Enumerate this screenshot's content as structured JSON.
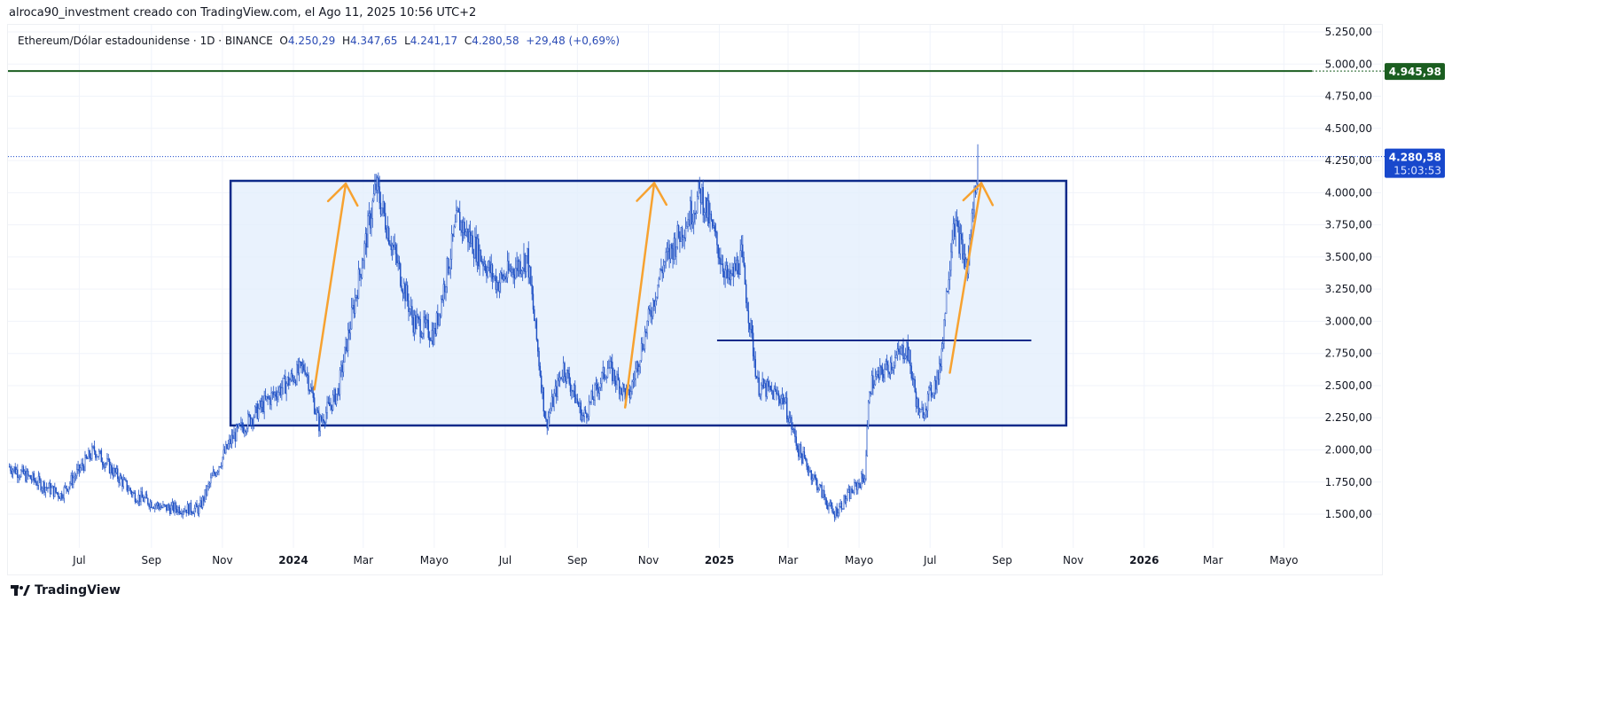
{
  "credit": "alroca90_investment creado con TradingView.com, el Ago 11, 2025 10:56 UTC+2",
  "legend": {
    "symbol": "Ethereum/Dólar estadounidense · 1D · BINANCE",
    "o_label": "O",
    "o": "4.250,29",
    "h_label": "H",
    "h": "4.347,65",
    "l_label": "L",
    "l": "4.241,17",
    "c_label": "C",
    "c": "4.280,58",
    "change": "+29,48 (+0,69%)"
  },
  "logo": "TradingView",
  "colors": {
    "candle": "#1d4fc4",
    "box_border": "#0d2a8a",
    "box_fill": "#e3effd",
    "arrow": "#f7a230",
    "resistance": "#1b5e20",
    "price_tag": "#1848cc"
  },
  "chart_data": {
    "type": "candlestick",
    "ylim": [
      1300,
      5350
    ],
    "y_ticks": [
      "5.250,00",
      "5.000,00",
      "4.750,00",
      "4.500,00",
      "4.250,00",
      "4.000,00",
      "3.750,00",
      "3.500,00",
      "3.250,00",
      "3.000,00",
      "2.750,00",
      "2.500,00",
      "2.250,00",
      "2.000,00",
      "1.750,00",
      "1.500,00"
    ],
    "y_tick_values": [
      5250,
      5000,
      4750,
      4500,
      4250,
      4000,
      3750,
      3500,
      3250,
      3000,
      2750,
      2500,
      2250,
      2000,
      1750,
      1500
    ],
    "x_ticks": [
      {
        "label": "Jul",
        "date": "2023-07-01"
      },
      {
        "label": "Sep",
        "date": "2023-09-01"
      },
      {
        "label": "Nov",
        "date": "2023-11-01"
      },
      {
        "label": "2024",
        "date": "2024-01-01",
        "bold": true
      },
      {
        "label": "Mar",
        "date": "2024-03-01"
      },
      {
        "label": "Mayo",
        "date": "2024-05-01"
      },
      {
        "label": "Jul",
        "date": "2024-07-01"
      },
      {
        "label": "Sep",
        "date": "2024-09-01"
      },
      {
        "label": "Nov",
        "date": "2024-11-01"
      },
      {
        "label": "2025",
        "date": "2025-01-01",
        "bold": true
      },
      {
        "label": "Mar",
        "date": "2025-03-01"
      },
      {
        "label": "Mayo",
        "date": "2025-05-01"
      },
      {
        "label": "Jul",
        "date": "2025-07-01"
      },
      {
        "label": "Sep",
        "date": "2025-09-01"
      },
      {
        "label": "Nov",
        "date": "2025-11-01"
      },
      {
        "label": "2026",
        "date": "2026-01-01",
        "bold": true
      },
      {
        "label": "Mar",
        "date": "2026-03-01"
      },
      {
        "label": "Mayo",
        "date": "2026-05-01"
      }
    ],
    "price_path": [
      [
        "2023-05-02",
        1870
      ],
      [
        "2023-06-15",
        1650
      ],
      [
        "2023-07-14",
        2000
      ],
      [
        "2023-08-17",
        1650
      ],
      [
        "2023-09-11",
        1550
      ],
      [
        "2023-10-12",
        1540
      ],
      [
        "2023-10-24",
        1800
      ],
      [
        "2023-11-10",
        2100
      ],
      [
        "2023-12-09",
        2380
      ],
      [
        "2024-01-11",
        2650
      ],
      [
        "2024-01-23",
        2200
      ],
      [
        "2024-02-08",
        2450
      ],
      [
        "2024-03-12",
        4050
      ],
      [
        "2024-04-13",
        3000
      ],
      [
        "2024-05-01",
        2900
      ],
      [
        "2024-05-21",
        3800
      ],
      [
        "2024-06-24",
        3300
      ],
      [
        "2024-07-20",
        3500
      ],
      [
        "2024-08-05",
        2200
      ],
      [
        "2024-08-20",
        2650
      ],
      [
        "2024-09-06",
        2250
      ],
      [
        "2024-09-27",
        2650
      ],
      [
        "2024-10-15",
        2400
      ],
      [
        "2024-11-12",
        3400
      ],
      [
        "2024-12-16",
        4000
      ],
      [
        "2025-01-09",
        3300
      ],
      [
        "2025-01-20",
        3500
      ],
      [
        "2025-02-03",
        2500
      ],
      [
        "2025-02-25",
        2400
      ],
      [
        "2025-03-10",
        2000
      ],
      [
        "2025-04-09",
        1500
      ],
      [
        "2025-05-06",
        1800
      ],
      [
        "2025-05-10",
        2500
      ],
      [
        "2025-06-11",
        2800
      ],
      [
        "2025-06-22",
        2250
      ],
      [
        "2025-07-09",
        2600
      ],
      [
        "2025-07-21",
        3800
      ],
      [
        "2025-08-02",
        3400
      ],
      [
        "2025-08-11",
        4280.58
      ]
    ],
    "last_price": {
      "value": 4280.58,
      "label": "4.280,58",
      "countdown": "15:03:53"
    },
    "resistance": {
      "value": 4945.98,
      "label": "4.945,98"
    },
    "range_box": {
      "from": "2023-11-08",
      "to": "2025-10-26",
      "top": 4092,
      "bottom": 2190
    },
    "level_line": {
      "from": "2024-12-30",
      "to": "2025-09-26",
      "value": 2851
    },
    "arrows": [
      {
        "from": [
          "2024-01-19",
          2470
        ],
        "to": [
          "2024-02-15",
          4070
        ]
      },
      {
        "from": [
          "2024-10-12",
          2330
        ],
        "to": [
          "2024-11-06",
          4075
        ]
      },
      {
        "from": [
          "2025-07-18",
          2600
        ],
        "to": [
          "2025-08-14",
          4075
        ]
      }
    ]
  }
}
